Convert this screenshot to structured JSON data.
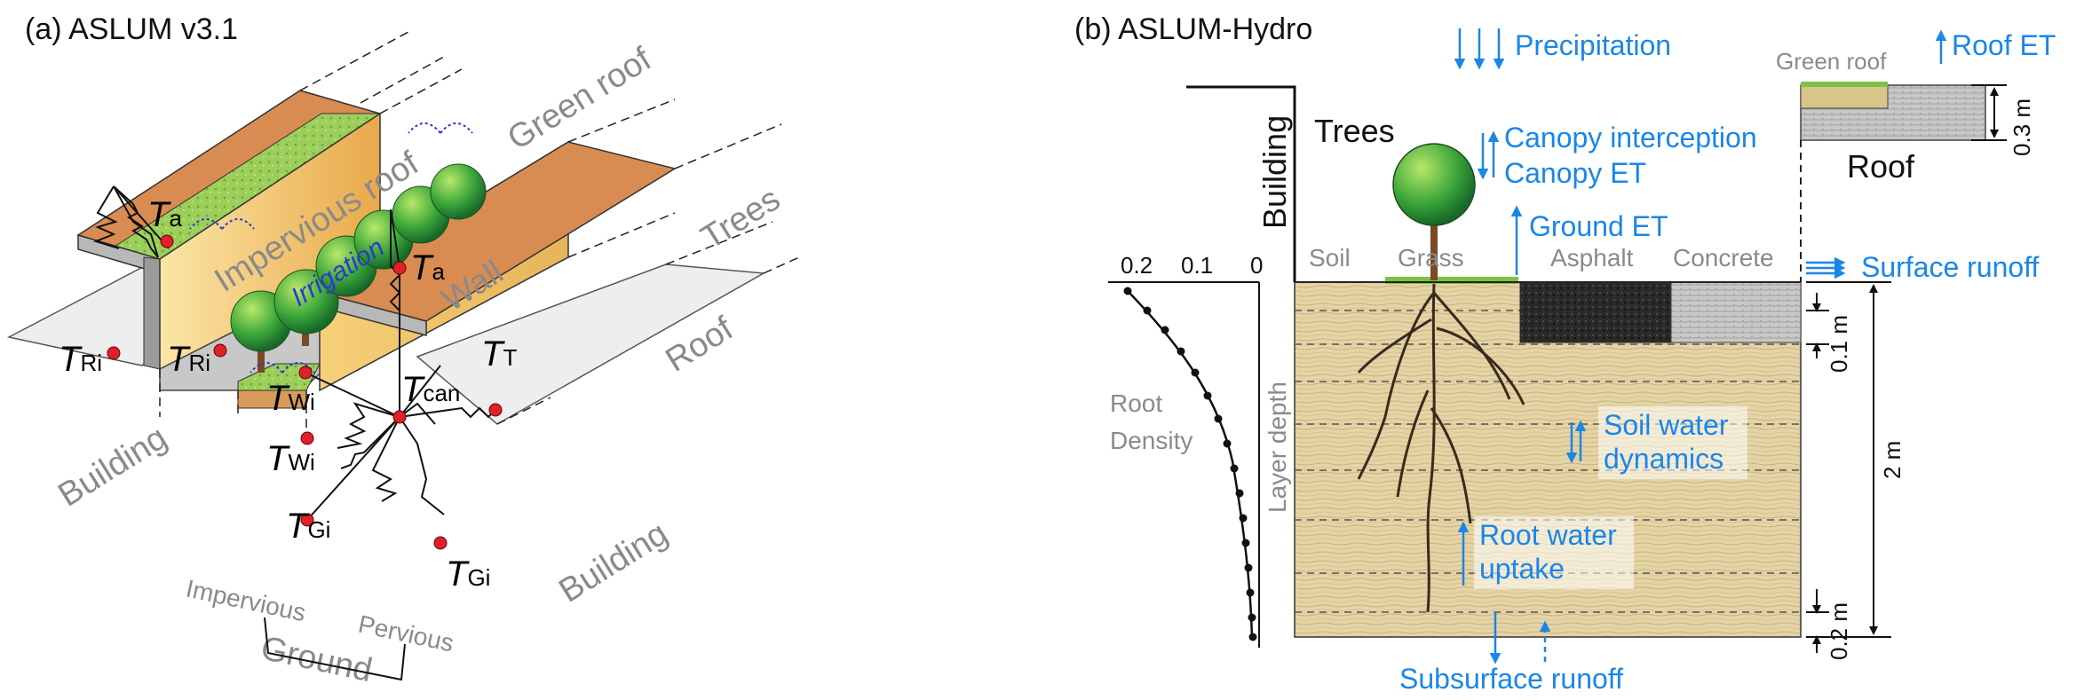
{
  "panel_a": {
    "title": "(a) ASLUM v3.1",
    "labels": {
      "impervious_roof": "Impervious roof",
      "green_roof": "Green roof",
      "irrigation": "Irrigation",
      "wall": "Wall",
      "trees": "Trees",
      "roof": "Roof",
      "building_left": "Building",
      "building_right": "Building",
      "impervious": "Impervious",
      "pervious": "Pervious",
      "ground": "Ground"
    },
    "nodes": {
      "t_a_1": {
        "main": "T",
        "sub": "a"
      },
      "t_a_2": {
        "main": "T",
        "sub": "a"
      },
      "t_ri_1": {
        "main": "T",
        "sub": "Ri"
      },
      "t_ri_2": {
        "main": "T",
        "sub": "Ri"
      },
      "t_t": {
        "main": "T",
        "sub": "T"
      },
      "t_can": {
        "main": "T",
        "sub": "can"
      },
      "t_wi_1": {
        "main": "T",
        "sub": "Wi"
      },
      "t_wi_2": {
        "main": "T",
        "sub": "Wi"
      },
      "t_gi_1": {
        "main": "T",
        "sub": "Gi"
      },
      "t_gi_2": {
        "main": "T",
        "sub": "Gi"
      }
    }
  },
  "panel_b": {
    "title": "(b) ASLUM-Hydro",
    "flux_labels": {
      "precipitation": "Precipitation",
      "roof_et": "Roof ET",
      "canopy_interception": "Canopy interception",
      "canopy_et": "Canopy ET",
      "ground_et": "Ground ET",
      "surface_runoff": "Surface runoff",
      "soil_water_1": "Soil water",
      "soil_water_2": "dynamics",
      "root_water_1": "Root water",
      "root_water_2": "uptake",
      "subsurface_runoff": "Subsurface runoff"
    },
    "labels": {
      "green_roof": "Green roof",
      "roof": "Roof",
      "trees": "Trees",
      "building": "Building",
      "soil": "Soil",
      "grass": "Grass",
      "asphalt": "Asphalt",
      "concrete": "Concrete",
      "root_density_1": "Root",
      "root_density_2": "Density",
      "layer_depth": "Layer depth"
    },
    "axis_ticks": [
      "0.2",
      "0.1",
      "0"
    ],
    "dimensions": {
      "roof_depth": "0.3 m",
      "layer_top": "0.1 m",
      "soil_total": "2 m",
      "layer_bottom": "0.2 m"
    }
  },
  "colors": {
    "flux_blue": "#1a86e8",
    "node_red": "#e0202a",
    "roof_orange": "#d98c52",
    "wall_yellow": "#f2c46a",
    "green_roof": "#8dc63f",
    "soil_tan": "#e2d1a3",
    "label_gray": "#8a8a8a"
  }
}
